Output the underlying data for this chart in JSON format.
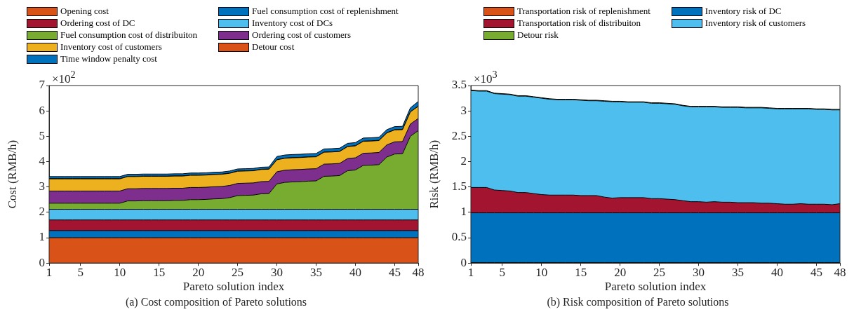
{
  "chart_data": [
    {
      "type": "area",
      "title": "(a) Cost composition of Pareto solutions",
      "xlabel": "Pareto solution index",
      "ylabel": "Cost (RMB/h)",
      "annotations": [
        "×10$^{2}$"
      ],
      "stacked": true,
      "legend": "top",
      "grid": false,
      "x": [
        1,
        2,
        3,
        4,
        5,
        6,
        7,
        8,
        9,
        10,
        11,
        12,
        13,
        14,
        15,
        16,
        17,
        18,
        19,
        20,
        21,
        22,
        23,
        24,
        25,
        26,
        27,
        28,
        29,
        30,
        31,
        32,
        33,
        34,
        35,
        36,
        37,
        38,
        39,
        40,
        41,
        42,
        43,
        44,
        45,
        46,
        47,
        48
      ],
      "xlim": [
        1,
        48
      ],
      "xticks": [
        1,
        5,
        10,
        15,
        20,
        25,
        30,
        35,
        40,
        45,
        48
      ],
      "ylim": [
        0,
        7
      ],
      "yticks": [
        0,
        1,
        2,
        3,
        4,
        5,
        6,
        7
      ],
      "series": [
        {
          "name": "Opening cost",
          "color": "#d95319",
          "values": [
            1,
            1,
            1,
            1,
            1,
            1,
            1,
            1,
            1,
            1,
            1,
            1,
            1,
            1,
            1,
            1,
            1,
            1,
            1,
            1,
            1,
            1,
            1,
            1,
            1,
            1,
            1,
            1,
            1,
            1,
            1,
            1,
            1,
            1,
            1,
            1,
            1,
            1,
            1,
            1,
            1,
            1,
            1,
            1,
            1,
            1,
            1,
            1
          ]
        },
        {
          "name": "Fuel consumption cost of replenishment",
          "color": "#0072bd",
          "values": [
            0.28,
            0.28,
            0.28,
            0.28,
            0.28,
            0.28,
            0.28,
            0.28,
            0.28,
            0.28,
            0.28,
            0.28,
            0.28,
            0.28,
            0.28,
            0.28,
            0.28,
            0.28,
            0.28,
            0.28,
            0.28,
            0.28,
            0.28,
            0.28,
            0.28,
            0.28,
            0.28,
            0.28,
            0.28,
            0.28,
            0.28,
            0.28,
            0.28,
            0.28,
            0.28,
            0.28,
            0.28,
            0.28,
            0.28,
            0.28,
            0.28,
            0.28,
            0.28,
            0.28,
            0.28,
            0.28,
            0.28,
            0.28
          ]
        },
        {
          "name": "Ordering cost of DC",
          "color": "#a2142f",
          "values": [
            0.42,
            0.42,
            0.42,
            0.42,
            0.42,
            0.42,
            0.42,
            0.42,
            0.42,
            0.42,
            0.42,
            0.42,
            0.42,
            0.42,
            0.42,
            0.42,
            0.42,
            0.42,
            0.42,
            0.42,
            0.42,
            0.42,
            0.42,
            0.42,
            0.42,
            0.42,
            0.42,
            0.42,
            0.42,
            0.42,
            0.42,
            0.42,
            0.42,
            0.42,
            0.42,
            0.42,
            0.42,
            0.42,
            0.42,
            0.42,
            0.42,
            0.42,
            0.42,
            0.42,
            0.42,
            0.42,
            0.42,
            0.42
          ]
        },
        {
          "name": "Inventory cost of DCs",
          "color": "#4dbeee",
          "values": [
            0.42,
            0.42,
            0.42,
            0.42,
            0.42,
            0.42,
            0.42,
            0.42,
            0.42,
            0.42,
            0.42,
            0.42,
            0.42,
            0.42,
            0.42,
            0.42,
            0.42,
            0.42,
            0.42,
            0.42,
            0.42,
            0.42,
            0.42,
            0.42,
            0.42,
            0.42,
            0.42,
            0.42,
            0.42,
            0.42,
            0.42,
            0.42,
            0.42,
            0.42,
            0.42,
            0.42,
            0.42,
            0.42,
            0.42,
            0.42,
            0.42,
            0.42,
            0.42,
            0.42,
            0.42,
            0.42,
            0.42,
            0.42
          ]
        },
        {
          "name": "Fuel consumption cost of distribuiton",
          "color": "#77ac30",
          "values": [
            0.24,
            0.24,
            0.24,
            0.24,
            0.24,
            0.24,
            0.24,
            0.24,
            0.24,
            0.24,
            0.33,
            0.33,
            0.34,
            0.34,
            0.34,
            0.34,
            0.35,
            0.35,
            0.38,
            0.38,
            0.39,
            0.41,
            0.42,
            0.46,
            0.54,
            0.55,
            0.56,
            0.61,
            0.62,
            1.0,
            1.06,
            1.08,
            1.09,
            1.11,
            1.12,
            1.3,
            1.31,
            1.33,
            1.52,
            1.55,
            1.73,
            1.74,
            1.76,
            2.06,
            2.18,
            2.19,
            2.88,
            3.1
          ]
        },
        {
          "name": "Ordering cost of customers",
          "color": "#7e2f8e",
          "values": [
            0.48,
            0.48,
            0.48,
            0.48,
            0.48,
            0.48,
            0.48,
            0.48,
            0.48,
            0.48,
            0.48,
            0.48,
            0.48,
            0.48,
            0.48,
            0.48,
            0.48,
            0.48,
            0.48,
            0.48,
            0.48,
            0.48,
            0.48,
            0.48,
            0.48,
            0.48,
            0.48,
            0.48,
            0.48,
            0.48,
            0.48,
            0.48,
            0.48,
            0.48,
            0.48,
            0.48,
            0.48,
            0.48,
            0.48,
            0.48,
            0.48,
            0.48,
            0.48,
            0.48,
            0.48,
            0.48,
            0.48,
            0.48
          ]
        },
        {
          "name": "Inventory cost of customers",
          "color": "#edb120",
          "values": [
            0.48,
            0.48,
            0.48,
            0.48,
            0.48,
            0.48,
            0.48,
            0.48,
            0.48,
            0.48,
            0.48,
            0.48,
            0.48,
            0.48,
            0.48,
            0.48,
            0.48,
            0.48,
            0.48,
            0.48,
            0.48,
            0.48,
            0.48,
            0.48,
            0.48,
            0.48,
            0.48,
            0.48,
            0.48,
            0.47,
            0.47,
            0.47,
            0.47,
            0.47,
            0.47,
            0.47,
            0.47,
            0.47,
            0.47,
            0.47,
            0.47,
            0.47,
            0.47,
            0.47,
            0.47,
            0.47,
            0.48,
            0.48
          ]
        },
        {
          "name": "Detour cost",
          "color": "#d95319",
          "values": [
            0.01,
            0.01,
            0.01,
            0.01,
            0.01,
            0.01,
            0.01,
            0.01,
            0.01,
            0.01,
            0.01,
            0.01,
            0.01,
            0.01,
            0.01,
            0.01,
            0.01,
            0.01,
            0.01,
            0.01,
            0.01,
            0.01,
            0.01,
            0.01,
            0.01,
            0.01,
            0.01,
            0.01,
            0.01,
            0.01,
            0.01,
            0.01,
            0.01,
            0.01,
            0.01,
            0.01,
            0.01,
            0.01,
            0.01,
            0.01,
            0.01,
            0.01,
            0.01,
            0.01,
            0.01,
            0.01,
            0.01,
            0.01
          ]
        },
        {
          "name": "Time window penalty cost",
          "color": "#0072bd",
          "values": [
            0.08,
            0.08,
            0.08,
            0.08,
            0.08,
            0.08,
            0.08,
            0.08,
            0.08,
            0.08,
            0.08,
            0.08,
            0.08,
            0.08,
            0.08,
            0.08,
            0.08,
            0.08,
            0.08,
            0.08,
            0.08,
            0.08,
            0.08,
            0.08,
            0.08,
            0.08,
            0.08,
            0.08,
            0.08,
            0.12,
            0.12,
            0.12,
            0.12,
            0.12,
            0.12,
            0.12,
            0.12,
            0.12,
            0.12,
            0.12,
            0.12,
            0.12,
            0.12,
            0.12,
            0.12,
            0.12,
            0.15,
            0.18
          ]
        }
      ]
    },
    {
      "type": "area",
      "title": "(b) Risk composition of Pareto solutions",
      "xlabel": "Pareto solution index",
      "ylabel": "Risk (RMB/h)",
      "annotations": [
        "×10$^{3}$"
      ],
      "stacked": true,
      "legend": "top",
      "grid": false,
      "x": [
        1,
        2,
        3,
        4,
        5,
        6,
        7,
        8,
        9,
        10,
        11,
        12,
        13,
        14,
        15,
        16,
        17,
        18,
        19,
        20,
        21,
        22,
        23,
        24,
        25,
        26,
        27,
        28,
        29,
        30,
        31,
        32,
        33,
        34,
        35,
        36,
        37,
        38,
        39,
        40,
        41,
        42,
        43,
        44,
        45,
        46,
        47,
        48
      ],
      "xlim": [
        1,
        48
      ],
      "xticks": [
        1,
        5,
        10,
        15,
        20,
        25,
        30,
        35,
        40,
        45,
        48
      ],
      "ylim": [
        0,
        3.5
      ],
      "yticks": [
        0,
        0.5,
        1,
        1.5,
        2,
        2.5,
        3,
        3.5
      ],
      "series": [
        {
          "name": "Transportation risk of replenishment",
          "color": "#d95319",
          "values": [
            0.01,
            0.01,
            0.01,
            0.01,
            0.01,
            0.01,
            0.01,
            0.01,
            0.01,
            0.01,
            0.01,
            0.01,
            0.01,
            0.01,
            0.01,
            0.01,
            0.01,
            0.01,
            0.01,
            0.01,
            0.01,
            0.01,
            0.01,
            0.01,
            0.01,
            0.01,
            0.01,
            0.01,
            0.01,
            0.01,
            0.01,
            0.01,
            0.01,
            0.01,
            0.01,
            0.01,
            0.01,
            0.01,
            0.01,
            0.01,
            0.01,
            0.01,
            0.01,
            0.01,
            0.01,
            0.01,
            0.01,
            0.01
          ]
        },
        {
          "name": "Inventory risk of DC",
          "color": "#0072bd",
          "values": [
            0.98,
            0.98,
            0.98,
            0.98,
            0.98,
            0.98,
            0.98,
            0.98,
            0.98,
            0.98,
            0.98,
            0.98,
            0.98,
            0.98,
            0.98,
            0.98,
            0.98,
            0.98,
            0.98,
            0.98,
            0.98,
            0.98,
            0.98,
            0.98,
            0.98,
            0.98,
            0.98,
            0.98,
            0.98,
            0.98,
            0.98,
            0.98,
            0.98,
            0.98,
            0.98,
            0.98,
            0.98,
            0.98,
            0.98,
            0.98,
            0.98,
            0.98,
            0.98,
            0.98,
            0.98,
            0.98,
            0.98,
            0.98
          ]
        },
        {
          "name": "Transportation risk of distribuiton",
          "color": "#a2142f",
          "values": [
            0.5,
            0.5,
            0.5,
            0.45,
            0.44,
            0.43,
            0.4,
            0.4,
            0.38,
            0.36,
            0.35,
            0.35,
            0.35,
            0.35,
            0.34,
            0.34,
            0.34,
            0.31,
            0.29,
            0.3,
            0.3,
            0.3,
            0.3,
            0.28,
            0.28,
            0.27,
            0.26,
            0.24,
            0.22,
            0.22,
            0.21,
            0.22,
            0.21,
            0.21,
            0.2,
            0.2,
            0.2,
            0.19,
            0.19,
            0.18,
            0.17,
            0.17,
            0.18,
            0.17,
            0.17,
            0.17,
            0.16,
            0.18
          ]
        },
        {
          "name": "Inventory risk of customers",
          "color": "#4dbeee",
          "values": [
            1.91,
            1.9,
            1.9,
            1.9,
            1.9,
            1.9,
            1.9,
            1.9,
            1.9,
            1.9,
            1.89,
            1.88,
            1.88,
            1.88,
            1.88,
            1.87,
            1.87,
            1.89,
            1.9,
            1.89,
            1.88,
            1.88,
            1.88,
            1.88,
            1.88,
            1.88,
            1.88,
            1.87,
            1.87,
            1.87,
            1.88,
            1.87,
            1.87,
            1.87,
            1.88,
            1.87,
            1.87,
            1.88,
            1.87,
            1.87,
            1.88,
            1.88,
            1.87,
            1.88,
            1.87,
            1.87,
            1.87,
            1.85
          ]
        },
        {
          "name": "Detour risk",
          "color": "#77ac30",
          "values": [
            0.01,
            0.01,
            0.01,
            0.01,
            0.01,
            0.01,
            0.01,
            0.01,
            0.01,
            0.01,
            0.01,
            0.01,
            0.01,
            0.01,
            0.01,
            0.01,
            0.01,
            0.01,
            0.01,
            0.01,
            0.01,
            0.01,
            0.01,
            0.01,
            0.01,
            0.01,
            0.01,
            0.01,
            0.01,
            0.01,
            0.01,
            0.01,
            0.01,
            0.01,
            0.01,
            0.01,
            0.01,
            0.01,
            0.01,
            0.01,
            0.01,
            0.01,
            0.01,
            0.01,
            0.01,
            0.01,
            0.01,
            0.01
          ]
        }
      ]
    }
  ]
}
